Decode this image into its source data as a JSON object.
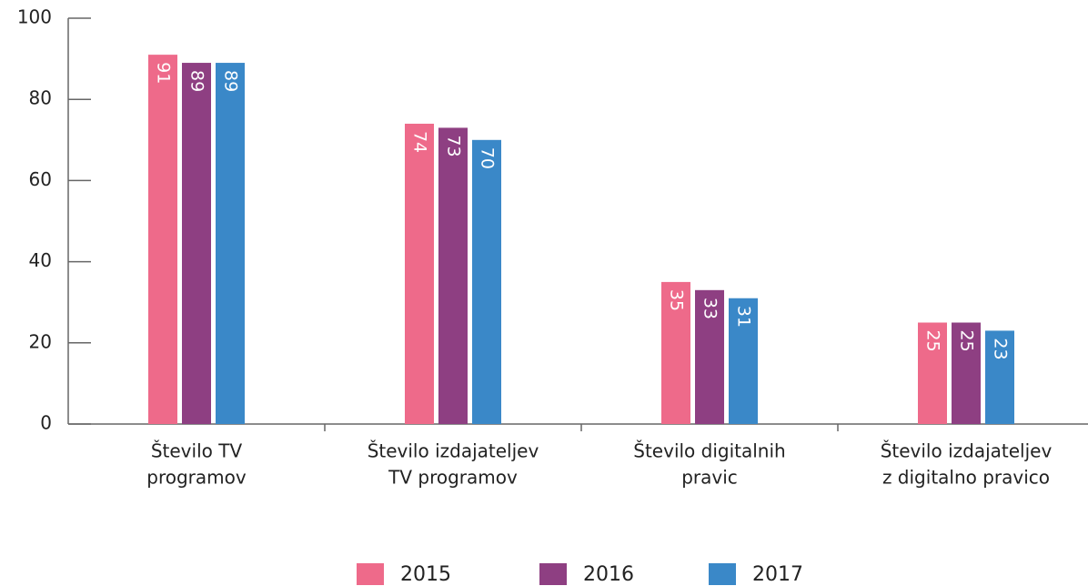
{
  "chart_data": {
    "type": "bar",
    "categories": [
      [
        "Število TV",
        "programov"
      ],
      [
        "Število izdajateljev",
        "TV programov"
      ],
      [
        "Število digitalnih",
        "pravic"
      ],
      [
        "Število izdajateljev",
        "z digitalno pravico"
      ]
    ],
    "series": [
      {
        "name": "2015",
        "color": "#ee6a8a",
        "values": [
          91,
          74,
          35,
          25
        ]
      },
      {
        "name": "2016",
        "color": "#8e3f82",
        "values": [
          89,
          73,
          33,
          25
        ]
      },
      {
        "name": "2017",
        "color": "#3a88c8",
        "values": [
          89,
          70,
          31,
          23
        ]
      }
    ],
    "ylim": [
      0,
      100
    ],
    "yticks": [
      0,
      20,
      40,
      60,
      80,
      100
    ],
    "data_labels": true,
    "legend": "bottom"
  }
}
